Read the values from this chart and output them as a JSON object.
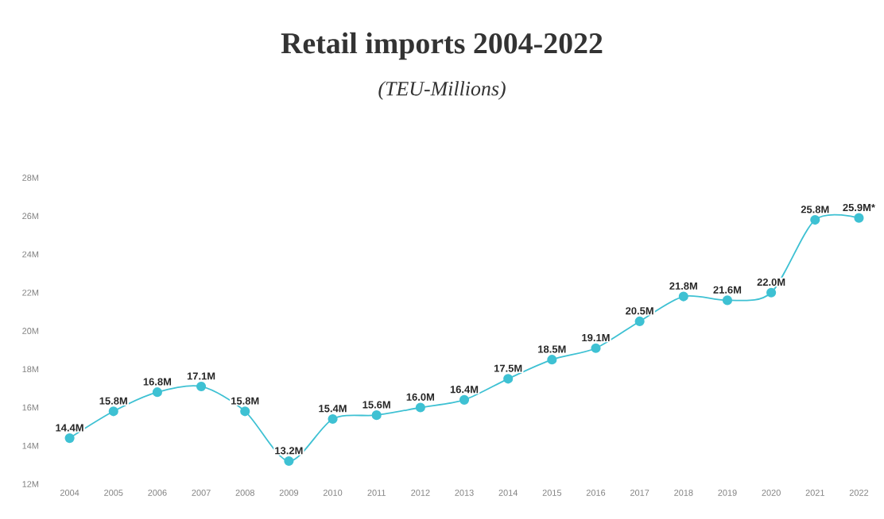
{
  "chart_data": {
    "type": "line",
    "title": "Retail imports 2004-2022",
    "subtitle": "(TEU-Millions)",
    "categories": [
      "2004",
      "2005",
      "2006",
      "2007",
      "2008",
      "2009",
      "2010",
      "2011",
      "2012",
      "2013",
      "2014",
      "2015",
      "2016",
      "2017",
      "2018",
      "2019",
      "2020",
      "2021",
      "2022"
    ],
    "values": [
      14.4,
      15.8,
      16.8,
      17.1,
      15.8,
      13.2,
      15.4,
      15.6,
      16.0,
      16.4,
      17.5,
      18.5,
      19.1,
      20.5,
      21.8,
      21.6,
      22.0,
      25.8,
      25.9
    ],
    "value_labels": [
      "14.4M",
      "15.8M",
      "16.8M",
      "17.1M",
      "15.8M",
      "13.2M",
      "15.4M",
      "15.6M",
      "16.0M",
      "16.4M",
      "17.5M",
      "18.5M",
      "19.1M",
      "20.5M",
      "21.8M",
      "21.6M",
      "22.0M",
      "25.8M",
      "25.9M*"
    ],
    "color": "#3ec1d3",
    "ylim": [
      12,
      28
    ],
    "yticks": [
      {
        "value": 12,
        "label": "12M"
      },
      {
        "value": 14,
        "label": "14M"
      },
      {
        "value": 16,
        "label": "16M"
      },
      {
        "value": 18,
        "label": "18M"
      },
      {
        "value": 20,
        "label": "20M"
      },
      {
        "value": 22,
        "label": "22M"
      },
      {
        "value": 24,
        "label": "24M"
      },
      {
        "value": 26,
        "label": "26M"
      },
      {
        "value": 28,
        "label": "28M"
      }
    ],
    "marker": "circle",
    "line_style": "solid",
    "grid": false
  }
}
